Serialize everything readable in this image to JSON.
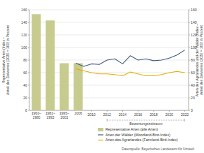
{
  "chart_data": {
    "type": "combo",
    "categories": [
      "1960–1980",
      "1982–1993",
      "1995–2001",
      "2006"
    ],
    "series": [
      {
        "name": "Representative Arten (alle Arten)",
        "type": "bar",
        "color": "#c8cb8e",
        "values": [
          153,
          143,
          75,
          75
        ]
      },
      {
        "name": "Arten der Wälder (Woodland-Bird-Index)",
        "type": "line",
        "axis": "y2",
        "color": "#3e5c7a",
        "x": [
          2008,
          2009,
          2010,
          2011,
          2012,
          2013,
          2014,
          2015,
          2016,
          2017,
          2018,
          2019,
          2020,
          2021,
          2022
        ],
        "values": [
          75,
          70,
          74,
          73,
          80,
          82,
          74,
          87,
          80,
          82,
          79,
          80,
          83,
          88,
          96
        ]
      },
      {
        "name": "Arten des Agrarlandes (Farmland-Bird-Index)",
        "type": "line",
        "axis": "y2",
        "color": "#e3b000",
        "x": [
          2008,
          2009,
          2010,
          2011,
          2012,
          2013,
          2014,
          2015,
          2016,
          2017,
          2018,
          2019,
          2020,
          2021,
          2022
        ],
        "values": [
          66,
          63,
          60,
          58,
          58,
          57,
          55,
          61,
          58,
          55,
          55,
          57,
          60,
          62,
          60
        ]
      }
    ],
    "xlim": [
      2002,
      2022.5
    ],
    "xticks": [
      2010,
      2012,
      2014,
      2016,
      2018,
      2020,
      2022
    ],
    "ylim": [
      0,
      160
    ],
    "yticks": [
      0,
      20,
      40,
      60,
      80,
      100,
      120,
      140,
      160
    ],
    "y2lim": [
      0,
      160
    ],
    "y2ticks": [
      0,
      20,
      40,
      60,
      80,
      100,
      120,
      140,
      160
    ],
    "y_label": [
      "Representative Arten (Index –",
      "Anteil des Zielwertes (2030 = 100) in Prozent"
    ],
    "y2_label": [
      "Arten des Agrarlandes und der Wälder (Index –",
      "Anteil des Zielwertes (2030 = 100) in Prozent"
    ],
    "annotations": [
      {
        "text": "Bewertungszeitraum",
        "x": [
          2012,
          2022
        ]
      }
    ],
    "source": "Datenquelle: Bayerisches Landesamt für Umwelt",
    "grid": true,
    "legend": "bottom"
  }
}
